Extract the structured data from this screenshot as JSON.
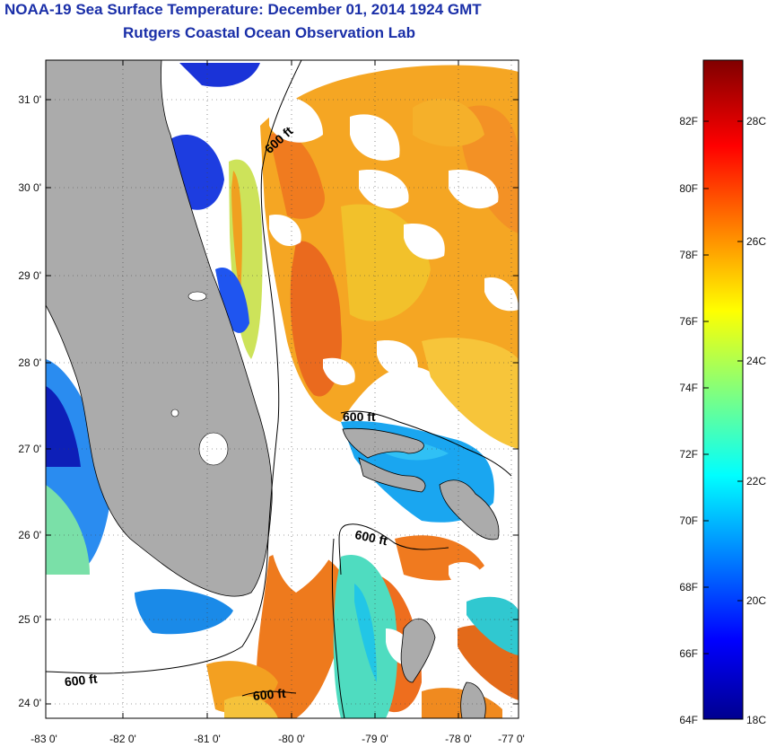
{
  "title": {
    "line1": "NOAA-19 Sea Surface Temperature:  December 01, 2014 1924 GMT",
    "line2": "Rutgers Coastal Ocean Observation Lab"
  },
  "map": {
    "lat_labels": [
      "31 0'",
      "30 0'",
      "29 0'",
      "28 0'",
      "27 0'",
      "26 0'",
      "25 0'",
      "24 0'"
    ],
    "lon_labels": [
      "-83 0'",
      "-82 0'",
      "-81 0'",
      "-80 0'",
      "-79 0'",
      "-78 0'",
      "-77 0'"
    ],
    "contour_labels": [
      "600 ft",
      "600 ft",
      "600 ft",
      "600 ft",
      "600 ft"
    ]
  },
  "colorbar": {
    "fahrenheit": [
      "82F",
      "80F",
      "78F",
      "76F",
      "74F",
      "72F",
      "70F",
      "68F",
      "66F",
      "64F"
    ],
    "celsius": [
      "28C",
      "26C",
      "24C",
      "22C",
      "20C",
      "18C"
    ]
  },
  "colors": {
    "land": "#ababab",
    "cloud": "#ffffff",
    "title": "#1a2fa8"
  }
}
